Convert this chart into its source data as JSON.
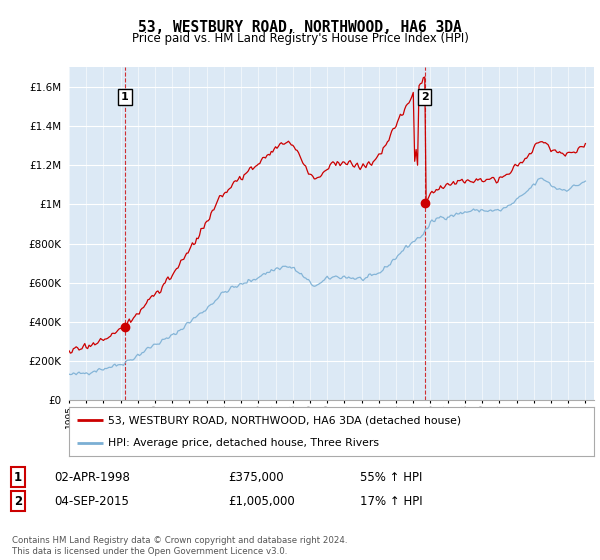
{
  "title": "53, WESTBURY ROAD, NORTHWOOD, HA6 3DA",
  "subtitle": "Price paid vs. HM Land Registry's House Price Index (HPI)",
  "legend_line1": "53, WESTBURY ROAD, NORTHWOOD, HA6 3DA (detached house)",
  "legend_line2": "HPI: Average price, detached house, Three Rivers",
  "annotation1_label": "1",
  "annotation1_date": "02-APR-1998",
  "annotation1_price": "£375,000",
  "annotation1_hpi": "55% ↑ HPI",
  "annotation2_label": "2",
  "annotation2_date": "04-SEP-2015",
  "annotation2_price": "£1,005,000",
  "annotation2_hpi": "17% ↑ HPI",
  "footnote": "Contains HM Land Registry data © Crown copyright and database right 2024.\nThis data is licensed under the Open Government Licence v3.0.",
  "red_color": "#cc0000",
  "blue_color": "#7bafd4",
  "bg_color": "#dce9f5",
  "ylim_min": 0,
  "ylim_max": 1700000,
  "yticks": [
    0,
    200000,
    400000,
    600000,
    800000,
    1000000,
    1200000,
    1400000,
    1600000
  ],
  "ytick_labels": [
    "£0",
    "£200K",
    "£400K",
    "£600K",
    "£800K",
    "£1M",
    "£1.2M",
    "£1.4M",
    "£1.6M"
  ],
  "sale1_x": 1998.25,
  "sale1_y": 375000,
  "sale2_x": 2015.67,
  "sale2_y": 1005000,
  "xmin": 1995,
  "xmax": 2025.5
}
